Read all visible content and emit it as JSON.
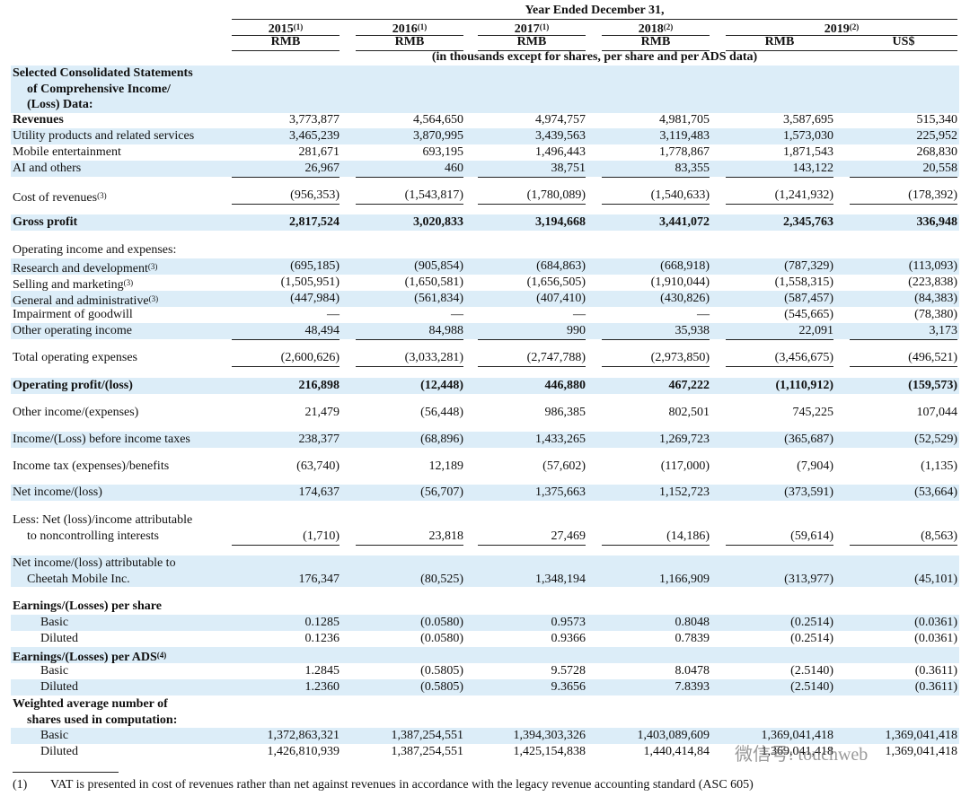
{
  "header": {
    "period": "Year Ended December 31,",
    "years": [
      {
        "year": "2015",
        "note": "(1)"
      },
      {
        "year": "2016",
        "note": "(1)"
      },
      {
        "year": "2017",
        "note": "(1)"
      },
      {
        "year": "2018",
        "note": "(2)"
      },
      {
        "year": "2019",
        "note": "(2)"
      }
    ],
    "currencies": [
      "RMB",
      "RMB",
      "RMB",
      "RMB",
      "RMB",
      "US$"
    ],
    "unit_note": "(in thousands except for shares, per share and per ADS data)"
  },
  "rows": [
    {
      "label": [
        "Selected Consolidated Statements",
        "of Comprehensive Income/",
        "(Loss) Data:"
      ]
    },
    {
      "label": [
        "Revenues"
      ],
      "values": [
        "3,773,877",
        "4,564,650",
        "4,974,757",
        "4,981,705",
        "3,587,695",
        "515,340"
      ]
    },
    {
      "label": [
        "Utility products and related services"
      ],
      "values": [
        "3,465,239",
        "3,870,995",
        "3,439,563",
        "3,119,483",
        "1,573,030",
        "225,952"
      ]
    },
    {
      "label": [
        "Mobile entertainment"
      ],
      "values": [
        "281,671",
        "693,195",
        "1,496,443",
        "1,778,867",
        "1,871,543",
        "268,830"
      ]
    },
    {
      "label": [
        "AI and others"
      ],
      "values": [
        "26,967",
        "460",
        "38,751",
        "83,355",
        "143,122",
        "20,558"
      ]
    },
    {
      "label": [
        "Cost of revenues"
      ],
      "note": "(3)",
      "values": [
        "(956,353)",
        "(1,543,817)",
        "(1,780,089)",
        "(1,540,633)",
        "(1,241,932)",
        "(178,392)"
      ]
    },
    {
      "label": [
        "Gross profit"
      ],
      "values": [
        "2,817,524",
        "3,020,833",
        "3,194,668",
        "3,441,072",
        "2,345,763",
        "336,948"
      ]
    },
    {
      "label": [
        "Operating income and expenses:"
      ]
    },
    {
      "label": [
        "Research and development"
      ],
      "note": "(3)",
      "values": [
        "(695,185)",
        "(905,854)",
        "(684,863)",
        "(668,918)",
        "(787,329)",
        "(113,093)"
      ]
    },
    {
      "label": [
        "Selling and marketing"
      ],
      "note": "(3)",
      "values": [
        "(1,505,951)",
        "(1,650,581)",
        "(1,656,505)",
        "(1,910,044)",
        "(1,558,315)",
        "(223,838)"
      ]
    },
    {
      "label": [
        "General and administrative"
      ],
      "note": "(3)",
      "values": [
        "(447,984)",
        "(561,834)",
        "(407,410)",
        "(430,826)",
        "(587,457)",
        "(84,383)"
      ]
    },
    {
      "label": [
        "Impairment of goodwill"
      ],
      "values": [
        "—",
        "—",
        "—",
        "—",
        "(545,665)",
        "(78,380)"
      ]
    },
    {
      "label": [
        "Other operating income"
      ],
      "values": [
        "48,494",
        "84,988",
        "990",
        "35,938",
        "22,091",
        "3,173"
      ]
    },
    {
      "label": [
        "Total operating expenses"
      ],
      "values": [
        "(2,600,626)",
        "(3,033,281)",
        "(2,747,788)",
        "(2,973,850)",
        "(3,456,675)",
        "(496,521)"
      ]
    },
    {
      "label": [
        "Operating profit/(loss)"
      ],
      "values": [
        "216,898",
        "(12,448)",
        "446,880",
        "467,222",
        "(1,110,912)",
        "(159,573)"
      ]
    },
    {
      "label": [
        "Other income/(expenses)"
      ],
      "values": [
        "21,479",
        "(56,448)",
        "986,385",
        "802,501",
        "745,225",
        "107,044"
      ]
    },
    {
      "label": [
        "Income/(Loss) before income taxes"
      ],
      "values": [
        "238,377",
        "(68,896)",
        "1,433,265",
        "1,269,723",
        "(365,687)",
        "(52,529)"
      ]
    },
    {
      "label": [
        "Income tax (expenses)/benefits"
      ],
      "values": [
        "(63,740)",
        "12,189",
        "(57,602)",
        "(117,000)",
        "(7,904)",
        "(1,135)"
      ]
    },
    {
      "label": [
        "Net income/(loss)"
      ],
      "values": [
        "174,637",
        "(56,707)",
        "1,375,663",
        "1,152,723",
        "(373,591)",
        "(53,664)"
      ]
    },
    {
      "label": [
        "Less: Net (loss)/income attributable",
        "to noncontrolling interests"
      ],
      "values": [
        "(1,710)",
        "23,818",
        "27,469",
        "(14,186)",
        "(59,614)",
        "(8,563)"
      ]
    },
    {
      "label": [
        "Net income/(loss) attributable to",
        "Cheetah Mobile Inc."
      ],
      "values": [
        "176,347",
        "(80,525)",
        "1,348,194",
        "1,166,909",
        "(313,977)",
        "(45,101)"
      ]
    },
    {
      "label": [
        "Earnings/(Losses) per share"
      ]
    },
    {
      "label": [
        "Basic"
      ],
      "values": [
        "0.1285",
        "(0.0580)",
        "0.9573",
        "0.8048",
        "(0.2514)",
        "(0.0361)"
      ]
    },
    {
      "label": [
        "Diluted"
      ],
      "values": [
        "0.1236",
        "(0.0580)",
        "0.9366",
        "0.7839",
        "(0.2514)",
        "(0.0361)"
      ]
    },
    {
      "label": [
        "Earnings/(Losses) per ADS"
      ],
      "note": "(4)"
    },
    {
      "label": [
        "Basic"
      ],
      "values": [
        "1.2845",
        "(0.5805)",
        "9.5728",
        "8.0478",
        "(2.5140)",
        "(0.3611)"
      ]
    },
    {
      "label": [
        "Diluted"
      ],
      "values": [
        "1.2360",
        "(0.5805)",
        "9.3656",
        "7.8393",
        "(2.5140)",
        "(0.3611)"
      ]
    },
    {
      "label": [
        "Weighted average number of",
        "shares used in computation:"
      ]
    },
    {
      "label": [
        "Basic"
      ],
      "values": [
        "1,372,863,321",
        "1,387,254,551",
        "1,394,303,326",
        "1,403,089,609",
        "1,369,041,418",
        "1,369,041,418"
      ]
    },
    {
      "label": [
        "Diluted"
      ],
      "values": [
        "1,426,810,939",
        "1,387,254,551",
        "1,425,154,838",
        "1,440,414,84",
        "1,369,041,418",
        "1,369,041,418"
      ]
    }
  ],
  "footnote": {
    "marker": "(1)",
    "text": "VAT is presented in cost of revenues rather than net against revenues in accordance with the legacy revenue accounting standard (ASC 605)"
  },
  "watermark": "微信号: touchweb"
}
